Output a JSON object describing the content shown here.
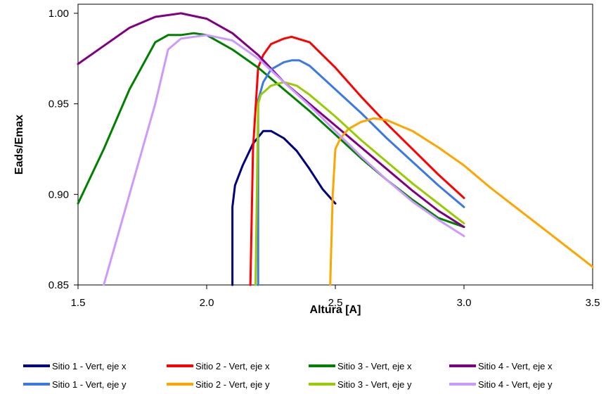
{
  "chart_data": {
    "type": "line",
    "title": "",
    "xlabel": "Altura [A]",
    "ylabel": "Eads/Emax",
    "xlim": [
      1.5,
      3.5
    ],
    "ylim": [
      0.85,
      1.005
    ],
    "xticks": [
      "1.5",
      "2.0",
      "2.5",
      "3.0",
      "3.5"
    ],
    "yticks": [
      "0.85",
      "0.90",
      "0.95",
      "1.00"
    ],
    "xtick_values": [
      1.5,
      2.0,
      2.5,
      3.0,
      3.5
    ],
    "ytick_values": [
      0.85,
      0.9,
      0.95,
      1.0
    ],
    "grid": false,
    "legend_position": "bottom",
    "series": [
      {
        "name": "Sitio 1 - Vert, eje x",
        "color": "#000080",
        "x": [
          2.1,
          2.1,
          2.11,
          2.14,
          2.18,
          2.22,
          2.25,
          2.3,
          2.35,
          2.4,
          2.45,
          2.5
        ],
        "y": [
          0.85,
          0.893,
          0.905,
          0.916,
          0.928,
          0.935,
          0.935,
          0.931,
          0.924,
          0.914,
          0.903,
          0.895
        ]
      },
      {
        "name": "Sitio 2 - Vert, eje x",
        "color": "#ff0000",
        "x": [
          2.17,
          2.18,
          2.2,
          2.22,
          2.25,
          2.3,
          2.33,
          2.4,
          2.5,
          2.6,
          2.7,
          2.8,
          2.9,
          3.0
        ],
        "y": [
          0.85,
          0.925,
          0.97,
          0.977,
          0.983,
          0.986,
          0.987,
          0.984,
          0.97,
          0.954,
          0.939,
          0.925,
          0.911,
          0.898
        ]
      },
      {
        "name": "Sitio 3 - Vert, eje x",
        "color": "#008000",
        "x": [
          1.5,
          1.6,
          1.7,
          1.8,
          1.85,
          1.9,
          1.95,
          2.0,
          2.1,
          2.2,
          2.3,
          2.4,
          2.5,
          2.6,
          2.7,
          2.8,
          2.9,
          3.0
        ],
        "y": [
          0.895,
          0.925,
          0.958,
          0.984,
          0.988,
          0.988,
          0.989,
          0.988,
          0.98,
          0.97,
          0.958,
          0.946,
          0.933,
          0.92,
          0.908,
          0.897,
          0.887,
          0.882
        ]
      },
      {
        "name": "Sitio 4 - Vert, eje x",
        "color": "#800080",
        "x": [
          1.5,
          1.6,
          1.7,
          1.8,
          1.9,
          2.0,
          2.1,
          2.2,
          2.3,
          2.4,
          2.5,
          2.6,
          2.7,
          2.8,
          2.9,
          3.0
        ],
        "y": [
          0.972,
          0.982,
          0.992,
          0.998,
          1.0,
          0.997,
          0.989,
          0.977,
          0.962,
          0.95,
          0.938,
          0.926,
          0.914,
          0.902,
          0.891,
          0.882
        ]
      },
      {
        "name": "Sitio 1 - Vert, eje y",
        "color": "#3c78e6",
        "x": [
          2.2,
          2.2,
          2.22,
          2.25,
          2.3,
          2.33,
          2.36,
          2.4,
          2.5,
          2.6,
          2.7,
          2.8,
          2.9,
          3.0
        ],
        "y": [
          0.85,
          0.952,
          0.962,
          0.969,
          0.973,
          0.974,
          0.974,
          0.971,
          0.958,
          0.945,
          0.931,
          0.918,
          0.905,
          0.893
        ]
      },
      {
        "name": "Sitio 2 - Vert, eje y",
        "color": "#ffa500",
        "x": [
          2.48,
          2.49,
          2.5,
          2.52,
          2.55,
          2.6,
          2.65,
          2.7,
          2.8,
          2.9,
          3.0,
          3.1,
          3.2,
          3.3,
          3.4,
          3.5
        ],
        "y": [
          0.85,
          0.9,
          0.925,
          0.931,
          0.936,
          0.94,
          0.942,
          0.941,
          0.935,
          0.926,
          0.916,
          0.904,
          0.893,
          0.882,
          0.871,
          0.86
        ]
      },
      {
        "name": "Sitio 3 - Vert, eje y",
        "color": "#99cc00",
        "x": [
          2.19,
          2.2,
          2.21,
          2.25,
          2.3,
          2.35,
          2.4,
          2.5,
          2.6,
          2.7,
          2.8,
          2.9,
          3.0
        ],
        "y": [
          0.85,
          0.95,
          0.955,
          0.96,
          0.962,
          0.96,
          0.955,
          0.943,
          0.93,
          0.918,
          0.906,
          0.895,
          0.884
        ]
      },
      {
        "name": "Sitio 4 - Vert, eje y",
        "color": "#cc99ff",
        "x": [
          1.6,
          1.7,
          1.8,
          1.85,
          1.9,
          2.0,
          2.1,
          2.2,
          2.3,
          2.4,
          2.5,
          2.6,
          2.7,
          2.8,
          2.9,
          3.0
        ],
        "y": [
          0.85,
          0.9,
          0.95,
          0.98,
          0.986,
          0.988,
          0.985,
          0.975,
          0.962,
          0.949,
          0.935,
          0.921,
          0.908,
          0.896,
          0.886,
          0.877
        ]
      }
    ]
  }
}
